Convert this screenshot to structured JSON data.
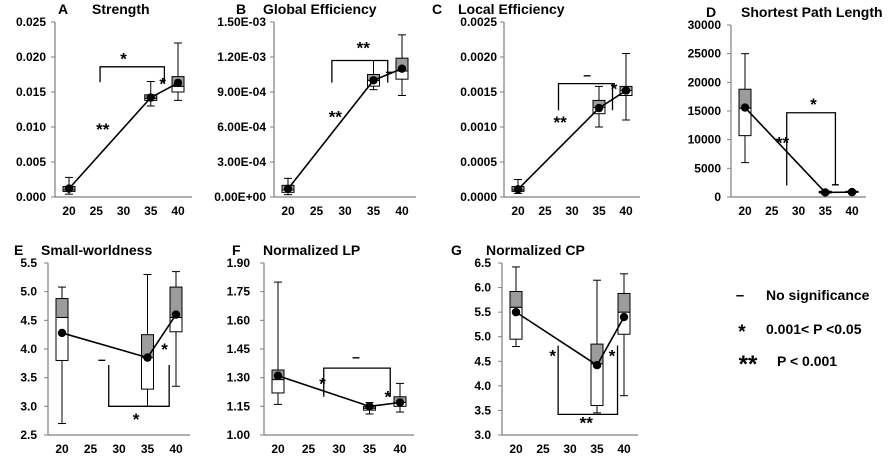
{
  "chart_data": [
    {
      "panel": "A",
      "title": "Strength",
      "type": "box_line",
      "xticks": [
        "20",
        "25",
        "30",
        "35",
        "40"
      ],
      "yticks": [
        "0.000",
        "0.005",
        "0.010",
        "0.015",
        "0.020",
        "0.025"
      ],
      "ylim": [
        0,
        0.025
      ],
      "groups": [
        {
          "x": 20,
          "min": 0.0004,
          "q1": 0.0008,
          "median": 0.001,
          "q3": 0.0015,
          "max": 0.0028,
          "mean": 0.0012
        },
        {
          "x": 35,
          "min": 0.013,
          "q1": 0.0138,
          "median": 0.0141,
          "q3": 0.0146,
          "max": 0.0165,
          "mean": 0.0142
        },
        {
          "x": 40,
          "min": 0.0138,
          "q1": 0.015,
          "median": 0.0158,
          "q3": 0.0172,
          "max": 0.022,
          "mean": 0.0163
        }
      ],
      "annotations": [
        {
          "text": "**",
          "x": 26.2,
          "y": 0.0097,
          "size": 17
        },
        {
          "text": "*",
          "x": 37.2,
          "y": 0.0162,
          "size": 17
        },
        {
          "text": "*",
          "x": 30.0,
          "y": 0.0198,
          "size": 17
        }
      ],
      "brackets": [
        {
          "x1": 25.7,
          "x2": 37.5,
          "y": 0.0186,
          "drop": 0.0022,
          "dir": "down"
        }
      ]
    },
    {
      "panel": "B",
      "title": "Global Efficiency",
      "type": "box_line",
      "xticks": [
        "20",
        "25",
        "30",
        "35",
        "40"
      ],
      "yticks": [
        "0.00E+00",
        "3.00E-04",
        "6.00E-04",
        "9.00E-04",
        "1.20E-03",
        "1.50E-03"
      ],
      "ylim": [
        0,
        0.0015
      ],
      "groups": [
        {
          "x": 20,
          "min": 2e-05,
          "q1": 4e-05,
          "median": 6e-05,
          "q3": 0.0001,
          "max": 0.00016,
          "mean": 7e-05
        },
        {
          "x": 35,
          "min": 0.00092,
          "q1": 0.00095,
          "median": 0.001,
          "q3": 0.00105,
          "max": 0.00117,
          "mean": 0.001
        },
        {
          "x": 40,
          "min": 0.00087,
          "q1": 0.00101,
          "median": 0.00108,
          "q3": 0.00119,
          "max": 0.00139,
          "mean": 0.0011
        }
      ],
      "annotations": [
        {
          "text": "**",
          "x": 28.3,
          "y": 0.00069,
          "size": 17
        },
        {
          "text": "**",
          "x": 33.2,
          "y": 0.00128,
          "size": 17
        },
        {
          "text": "–",
          "x": 37.8,
          "y": 0.00108,
          "size": 14
        }
      ],
      "brackets": [
        {
          "x1": 27.7,
          "x2": 37.5,
          "y": 0.00117,
          "drop": 0.00019,
          "dir": "down"
        }
      ]
    },
    {
      "panel": "C",
      "title": "Local Efficiency",
      "type": "box_line",
      "xticks": [
        "20",
        "25",
        "30",
        "35",
        "40"
      ],
      "yticks": [
        "0.0000",
        "0.0005",
        "0.0010",
        "0.0015",
        "0.0020",
        "0.0025"
      ],
      "ylim": [
        0,
        0.0025
      ],
      "groups": [
        {
          "x": 20,
          "min": 5e-05,
          "q1": 8e-05,
          "median": 0.0001,
          "q3": 0.00015,
          "max": 0.00025,
          "mean": 0.00011
        },
        {
          "x": 35,
          "min": 0.001,
          "q1": 0.00119,
          "median": 0.00128,
          "q3": 0.00138,
          "max": 0.00158,
          "mean": 0.00127
        },
        {
          "x": 40,
          "min": 0.0011,
          "q1": 0.00145,
          "median": 0.00152,
          "q3": 0.00158,
          "max": 0.00205,
          "mean": 0.00152
        }
      ],
      "annotations": [
        {
          "text": "**",
          "x": 27.8,
          "y": 0.00107,
          "size": 17
        },
        {
          "text": "*",
          "x": 37.8,
          "y": 0.00155,
          "size": 17
        },
        {
          "text": "–",
          "x": 32.8,
          "y": 0.00175,
          "size": 14
        }
      ],
      "brackets": [
        {
          "x1": 27.5,
          "x2": 37.5,
          "y": 0.00162,
          "drop": 0.00038,
          "dir": "down"
        }
      ]
    },
    {
      "panel": "D",
      "title": "Shortest Path Length",
      "type": "box_line",
      "xticks": [
        "20",
        "25",
        "30",
        "35",
        "40"
      ],
      "yticks": [
        "0",
        "5000",
        "10000",
        "15000",
        "20000",
        "25000",
        "30000"
      ],
      "ylim": [
        0,
        30000
      ],
      "groups": [
        {
          "x": 20,
          "min": 6000,
          "q1": 10700,
          "median": 15500,
          "q3": 18800,
          "max": 25000,
          "mean": 15600
        },
        {
          "x": 35,
          "min": 500,
          "q1": 700,
          "median": 850,
          "q3": 1000,
          "max": 1100,
          "mean": 800
        },
        {
          "x": 40,
          "min": 600,
          "q1": 800,
          "median": 900,
          "q3": 1000,
          "max": 1100,
          "mean": 850
        }
      ],
      "annotations": [
        {
          "text": "**",
          "x": 27.0,
          "y": 9500,
          "size": 17
        },
        {
          "text": "*",
          "x": 32.8,
          "y": 16200,
          "size": 17
        },
        {
          "text": "–",
          "x": 36.9,
          "y": 2300,
          "size": 14
        }
      ],
      "brackets": [
        {
          "x1": 27.8,
          "x2": 36.9,
          "y": 14700,
          "drop": 12700,
          "dir": "down"
        }
      ]
    },
    {
      "panel": "E",
      "title": "Small-worldness",
      "type": "box_line",
      "xticks": [
        "20",
        "25",
        "30",
        "35",
        "40"
      ],
      "yticks": [
        "2.5",
        "3.0",
        "3.5",
        "4.0",
        "4.5",
        "5.0",
        "5.5"
      ],
      "ylim": [
        2.5,
        5.5
      ],
      "groups": [
        {
          "x": 20,
          "min": 2.7,
          "q1": 3.8,
          "median": 4.55,
          "q3": 4.88,
          "max": 5.08,
          "mean": 4.28
        },
        {
          "x": 35,
          "min": 3.0,
          "q1": 3.3,
          "median": 3.85,
          "q3": 4.25,
          "max": 5.3,
          "mean": 3.85
        },
        {
          "x": 40,
          "min": 3.35,
          "q1": 4.3,
          "median": 4.55,
          "q3": 5.08,
          "max": 5.35,
          "mean": 4.6
        }
      ],
      "annotations": [
        {
          "text": "–",
          "x": 27.0,
          "y": 3.82,
          "size": 14
        },
        {
          "text": "*",
          "x": 38.0,
          "y": 4.0,
          "size": 17
        },
        {
          "text": "*",
          "x": 33.0,
          "y": 2.78,
          "size": 17
        }
      ],
      "brackets": [
        {
          "x1": 28.2,
          "x2": 38.8,
          "y": 3.0,
          "drop": 0.72,
          "dir": "up"
        }
      ]
    },
    {
      "panel": "F",
      "title": "Normalized LP",
      "type": "box_line",
      "xticks": [
        "20",
        "25",
        "30",
        "35",
        "40"
      ],
      "yticks": [
        "1.00",
        "1.15",
        "1.30",
        "1.45",
        "1.60",
        "1.75",
        "1.90"
      ],
      "ylim": [
        1.0,
        1.9
      ],
      "groups": [
        {
          "x": 20,
          "min": 1.16,
          "q1": 1.22,
          "median": 1.29,
          "q3": 1.34,
          "max": 1.8,
          "mean": 1.31
        },
        {
          "x": 35,
          "min": 1.11,
          "q1": 1.13,
          "median": 1.14,
          "q3": 1.15,
          "max": 1.17,
          "mean": 1.15
        },
        {
          "x": 40,
          "min": 1.12,
          "q1": 1.15,
          "median": 1.17,
          "q3": 1.2,
          "max": 1.27,
          "mean": 1.17
        }
      ],
      "annotations": [
        {
          "text": "*",
          "x": 27.3,
          "y": 1.27,
          "size": 17
        },
        {
          "text": "*",
          "x": 38.0,
          "y": 1.2,
          "size": 17
        },
        {
          "text": "–",
          "x": 32.8,
          "y": 1.41,
          "size": 14
        }
      ],
      "brackets": [
        {
          "x1": 27.5,
          "x2": 38.4,
          "y": 1.35,
          "drop": 0.15,
          "dir": "down"
        }
      ]
    },
    {
      "panel": "G",
      "title": "Normalized CP",
      "type": "box_line",
      "xticks": [
        "20",
        "25",
        "30",
        "35",
        "40"
      ],
      "yticks": [
        "3.0",
        "3.5",
        "4.0",
        "4.5",
        "5.0",
        "5.5",
        "6.0",
        "6.5"
      ],
      "ylim": [
        3.0,
        6.5
      ],
      "groups": [
        {
          "x": 20,
          "min": 4.8,
          "q1": 4.95,
          "median": 5.6,
          "q3": 5.92,
          "max": 6.42,
          "mean": 5.5
        },
        {
          "x": 35,
          "min": 3.45,
          "q1": 3.6,
          "median": 4.45,
          "q3": 4.85,
          "max": 6.15,
          "mean": 4.42
        },
        {
          "x": 40,
          "min": 3.8,
          "q1": 5.05,
          "median": 5.5,
          "q3": 5.88,
          "max": 6.28,
          "mean": 5.4
        }
      ],
      "annotations": [
        {
          "text": "*",
          "x": 26.8,
          "y": 4.62,
          "size": 17
        },
        {
          "text": "*",
          "x": 37.8,
          "y": 4.62,
          "size": 17
        },
        {
          "text": "**",
          "x": 33.0,
          "y": 3.25,
          "size": 17
        }
      ],
      "brackets": [
        {
          "x1": 27.8,
          "x2": 38.8,
          "y": 3.42,
          "drop": 1.4,
          "dir": "up"
        }
      ]
    }
  ],
  "legend": [
    {
      "symbol": "–",
      "label": "No significance"
    },
    {
      "symbol": "*",
      "label": "0.001< P <0.05"
    },
    {
      "symbol": "**",
      "label": "P < 0.001"
    }
  ]
}
